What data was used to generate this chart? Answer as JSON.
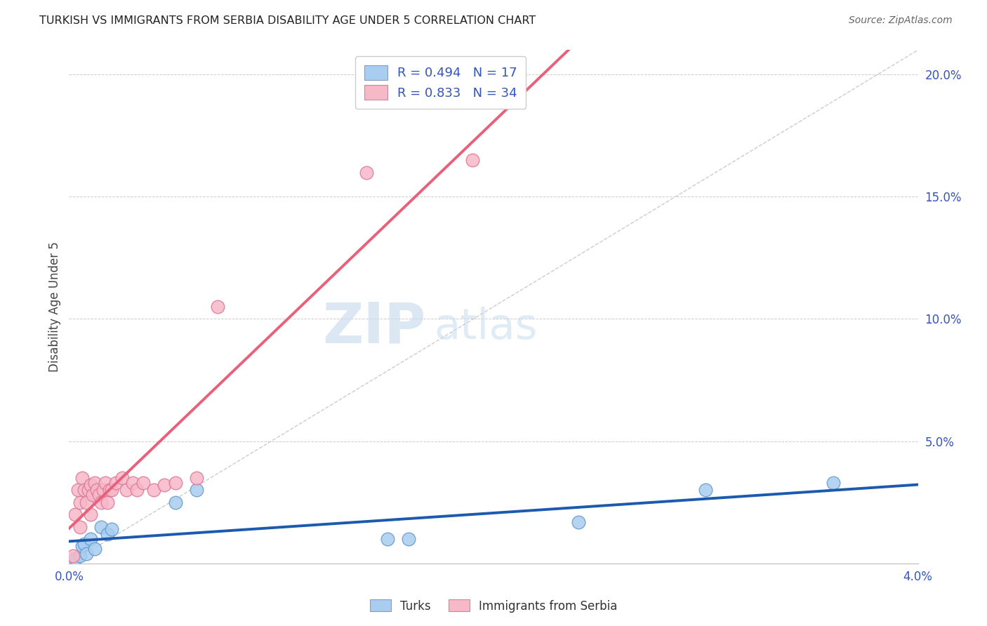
{
  "title": "TURKISH VS IMMIGRANTS FROM SERBIA DISABILITY AGE UNDER 5 CORRELATION CHART",
  "source": "Source: ZipAtlas.com",
  "ylabel": "Disability Age Under 5",
  "watermark_zip": "ZIP",
  "watermark_atlas": "atlas",
  "legend_turks_R": "R = 0.494",
  "legend_turks_N": "N = 17",
  "legend_serbia_R": "R = 0.833",
  "legend_serbia_N": "N = 34",
  "color_turks": "#A8CDEF",
  "color_serbia": "#F7B8C8",
  "color_turks_line": "#1B5AAD",
  "color_serbia_line": "#E8607A",
  "color_ref_line": "#CCCCCC",
  "xmin": 0.0,
  "xmax": 0.04,
  "ymin": 0.0,
  "ymax": 0.21,
  "right_yticks": [
    0.0,
    0.05,
    0.1,
    0.15,
    0.2
  ],
  "right_yticklabels": [
    "",
    "5.0%",
    "10.0%",
    "15.0%",
    "20.0%"
  ],
  "turks_x": [
    0.0003,
    0.0005,
    0.0006,
    0.0007,
    0.0008,
    0.001,
    0.0012,
    0.0015,
    0.0018,
    0.002,
    0.005,
    0.006,
    0.015,
    0.016,
    0.024,
    0.03,
    0.036
  ],
  "turks_y": [
    0.002,
    0.003,
    0.007,
    0.008,
    0.004,
    0.01,
    0.006,
    0.015,
    0.012,
    0.014,
    0.025,
    0.03,
    0.01,
    0.01,
    0.017,
    0.03,
    0.033
  ],
  "serbia_x": [
    0.0002,
    0.0003,
    0.0004,
    0.0005,
    0.0005,
    0.0006,
    0.0007,
    0.0008,
    0.0009,
    0.001,
    0.001,
    0.0011,
    0.0012,
    0.0013,
    0.0014,
    0.0015,
    0.0016,
    0.0017,
    0.0018,
    0.0019,
    0.002,
    0.0022,
    0.0025,
    0.0027,
    0.003,
    0.0032,
    0.0035,
    0.004,
    0.0045,
    0.005,
    0.006,
    0.007,
    0.014,
    0.019
  ],
  "serbia_y": [
    0.003,
    0.02,
    0.03,
    0.025,
    0.015,
    0.035,
    0.03,
    0.025,
    0.03,
    0.032,
    0.02,
    0.028,
    0.033,
    0.03,
    0.028,
    0.025,
    0.03,
    0.033,
    0.025,
    0.03,
    0.03,
    0.033,
    0.035,
    0.03,
    0.033,
    0.03,
    0.033,
    0.03,
    0.032,
    0.033,
    0.035,
    0.105,
    0.16,
    0.165
  ]
}
